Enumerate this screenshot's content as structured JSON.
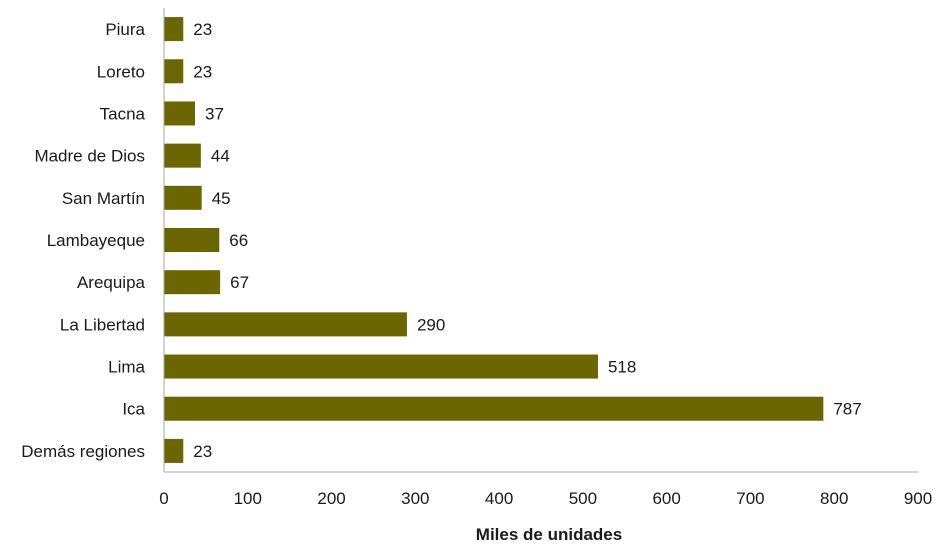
{
  "chart_data": {
    "type": "bar",
    "orientation": "horizontal",
    "categories": [
      "Piura",
      "Loreto",
      "Tacna",
      "Madre de Dios",
      "San Martín",
      "Lambayeque",
      "Arequipa",
      "La Libertad",
      "Lima",
      "Ica",
      "Demás regiones"
    ],
    "values": [
      23,
      23,
      37,
      44,
      45,
      66,
      67,
      290,
      518,
      787,
      23
    ],
    "title": "",
    "xlabel": "Miles de unidades",
    "ylabel": "",
    "xlim": [
      0,
      900
    ],
    "xticks": [
      0,
      100,
      200,
      300,
      400,
      500,
      600,
      700,
      800,
      900
    ],
    "grid": false,
    "data_labels": true,
    "colors": {
      "bar": "#6b6600",
      "axis": "#a6a6a6",
      "text": "#1a1a1a"
    }
  }
}
